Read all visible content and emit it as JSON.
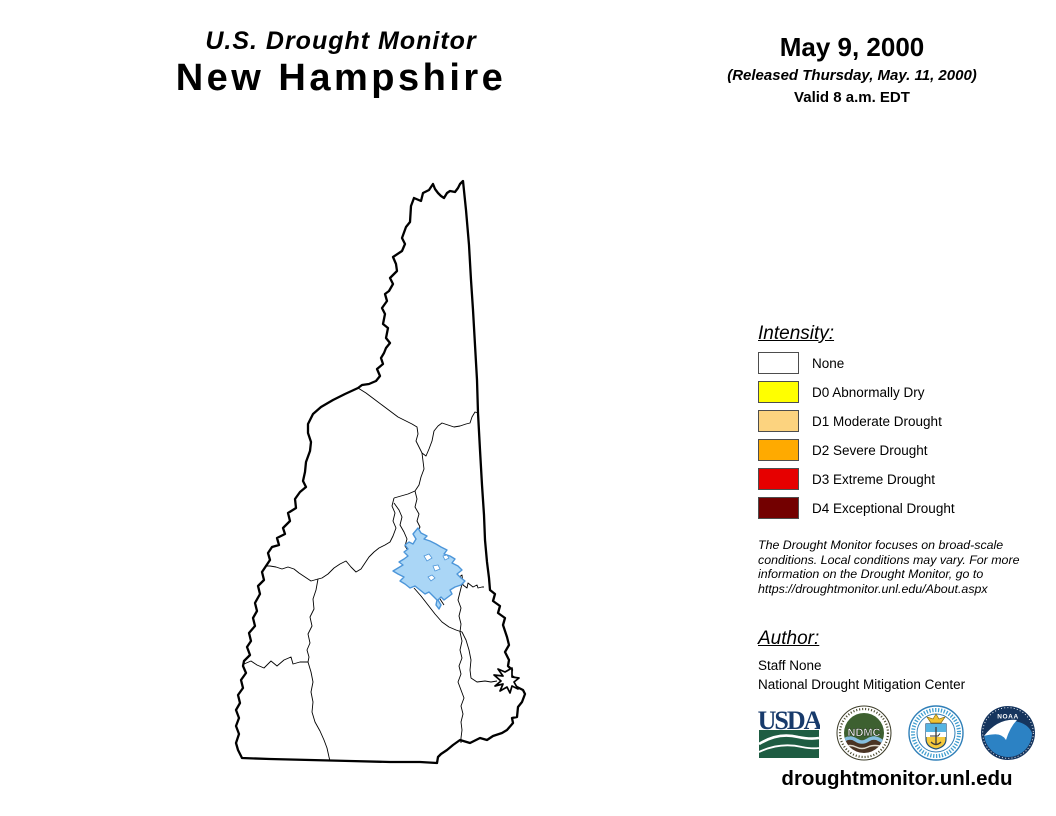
{
  "header": {
    "program": "U.S. Drought Monitor",
    "region": "New Hampshire",
    "date": "May 9, 2000",
    "released": "(Released Thursday, May. 11, 2000)",
    "valid": "Valid 8 a.m. EDT"
  },
  "legend": {
    "heading": "Intensity:",
    "items": [
      {
        "label": "None",
        "color": "#FFFFFF"
      },
      {
        "label": "D0 Abnormally Dry",
        "color": "#FFFF00"
      },
      {
        "label": "D1 Moderate Drought",
        "color": "#FCD37F"
      },
      {
        "label": "D2 Severe Drought",
        "color": "#FFAA00"
      },
      {
        "label": "D3 Extreme Drought",
        "color": "#E60000"
      },
      {
        "label": "D4 Exceptional Drought",
        "color": "#730000"
      }
    ]
  },
  "disclaimer": "The Drought Monitor focuses on broad-scale conditions. Local conditions may vary. For more information on the Drought Monitor, go to https://droughtmonitor.unl.edu/About.aspx",
  "author": {
    "heading": "Author:",
    "name": "Staff None",
    "organization": "National Drought Mitigation Center"
  },
  "logos": [
    {
      "name": "usda-logo",
      "label": "USDA"
    },
    {
      "name": "ndmc-logo",
      "label": "NDMC"
    },
    {
      "name": "department-of-commerce-seal",
      "label": ""
    },
    {
      "name": "noaa-logo",
      "label": "NOAA"
    }
  ],
  "footer": {
    "url": "droughtmonitor.unl.edu"
  },
  "map": {
    "state": "New Hampshire",
    "drought_status": "None",
    "water_feature": "Lake Winnipesaukee",
    "colors": {
      "land": "#FFFFFF",
      "water_fill": "#AAD6F6",
      "water_stroke": "#4D96D9",
      "border": "#000000"
    }
  }
}
